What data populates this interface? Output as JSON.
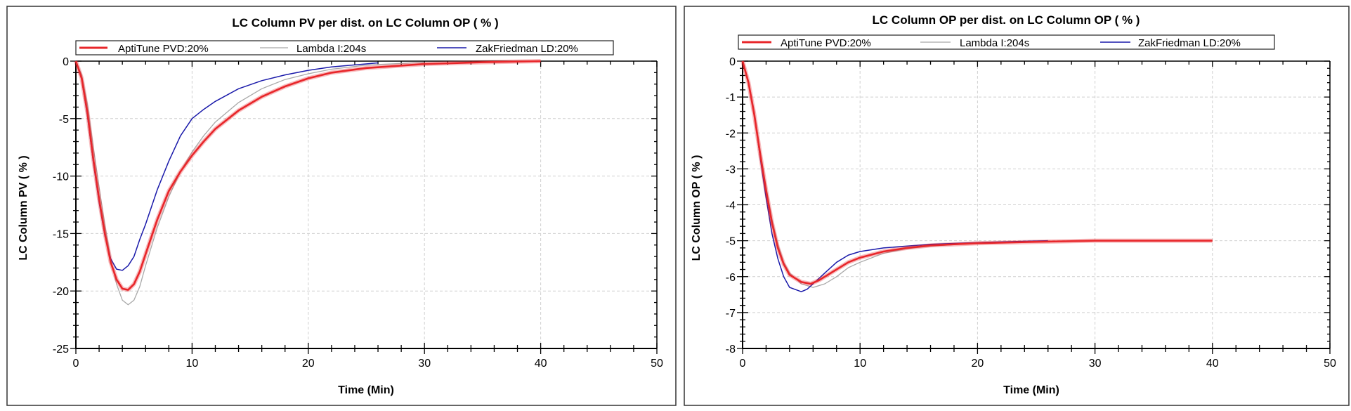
{
  "chart_data": [
    {
      "type": "line",
      "title": "LC Column PV per dist. on LC Column OP ( % )",
      "xlabel": "Time (Min)",
      "ylabel": "LC Column PV  ( % )",
      "xlim": [
        0,
        50
      ],
      "ylim": [
        -25,
        0
      ],
      "xticks": [
        "0",
        "10",
        "20",
        "30",
        "40",
        "50"
      ],
      "yticks": [
        "0",
        "-5",
        "-10",
        "-15",
        "-20",
        "-25"
      ],
      "grid": true,
      "legend_position": "top",
      "series": [
        {
          "name": "AptiTune  PVD:20%",
          "color": "#e8262a",
          "x": [
            0,
            0.5,
            1,
            1.5,
            2,
            2.5,
            3,
            3.5,
            4,
            4.5,
            5,
            5.5,
            6,
            6.5,
            7,
            8,
            9,
            10,
            11,
            12,
            14,
            16,
            18,
            20,
            22,
            25,
            30,
            35,
            40
          ],
          "y": [
            0,
            -1.5,
            -4.5,
            -8.5,
            -12,
            -15,
            -17.5,
            -19,
            -19.8,
            -19.9,
            -19.4,
            -18.3,
            -16.8,
            -15.3,
            -13.8,
            -11.3,
            -9.6,
            -8.2,
            -7.0,
            -5.9,
            -4.3,
            -3.1,
            -2.2,
            -1.5,
            -1.0,
            -0.6,
            -0.25,
            -0.1,
            0
          ]
        },
        {
          "name": "Lambda  I:204s",
          "color": "#a8a8a8",
          "x": [
            0,
            0.5,
            1,
            1.5,
            2,
            2.5,
            3,
            3.5,
            4,
            4.5,
            5,
            5.5,
            6,
            7,
            8,
            9,
            10,
            11,
            12,
            14,
            16,
            18,
            20,
            22,
            25,
            30
          ],
          "y": [
            0,
            -1.2,
            -3.8,
            -7.5,
            -11,
            -14.3,
            -17.2,
            -19.4,
            -20.8,
            -21.2,
            -20.8,
            -19.6,
            -17.8,
            -14.5,
            -11.8,
            -9.6,
            -7.9,
            -6.5,
            -5.3,
            -3.6,
            -2.4,
            -1.6,
            -1.1,
            -0.7,
            -0.35,
            -0.1
          ]
        },
        {
          "name": "ZakFriedman  LD:20%",
          "color": "#1a1aaa",
          "x": [
            0,
            0.5,
            1,
            1.5,
            2,
            2.5,
            3,
            3.5,
            4,
            4.5,
            5,
            5.5,
            6,
            7,
            8,
            9,
            10,
            11,
            12,
            14,
            16,
            18,
            20,
            22,
            26
          ],
          "y": [
            0,
            -1.6,
            -4.8,
            -8.8,
            -12.3,
            -15.2,
            -17.2,
            -18.1,
            -18.2,
            -17.8,
            -17.0,
            -15.5,
            -14.2,
            -11.2,
            -8.7,
            -6.5,
            -5.0,
            -4.2,
            -3.5,
            -2.4,
            -1.7,
            -1.2,
            -0.8,
            -0.5,
            -0.15
          ]
        }
      ]
    },
    {
      "type": "line",
      "title": "LC Column OP per dist. on LC Column OP ( % )",
      "xlabel": "Time (Min)",
      "ylabel": "LC Column OP  ( % )",
      "xlim": [
        0,
        50
      ],
      "ylim": [
        -8,
        0
      ],
      "xticks": [
        "0",
        "10",
        "20",
        "30",
        "40",
        "50"
      ],
      "yticks": [
        "0",
        "-1",
        "-2",
        "-3",
        "-4",
        "-5",
        "-6",
        "-7",
        "-8"
      ],
      "grid": true,
      "legend_position": "top",
      "series": [
        {
          "name": "AptiTune  PVD:20%",
          "color": "#e8262a",
          "x": [
            0,
            0.5,
            1,
            1.5,
            2,
            2.5,
            3,
            3.5,
            4,
            5,
            5.8,
            6.5,
            7,
            8,
            9,
            10,
            12,
            14,
            16,
            18,
            20,
            25,
            30,
            40
          ],
          "y": [
            0,
            -0.6,
            -1.5,
            -2.6,
            -3.6,
            -4.5,
            -5.2,
            -5.65,
            -5.95,
            -6.15,
            -6.2,
            -6.1,
            -6.0,
            -5.8,
            -5.6,
            -5.47,
            -5.3,
            -5.2,
            -5.13,
            -5.1,
            -5.07,
            -5.03,
            -5.0,
            -5.0
          ]
        },
        {
          "name": "Lambda  I:204s",
          "color": "#a8a8a8",
          "x": [
            0,
            0.5,
            1,
            1.5,
            2,
            2.5,
            3,
            3.5,
            4,
            5,
            6,
            7,
            8,
            9,
            10,
            12,
            14,
            16,
            20,
            25,
            30
          ],
          "y": [
            0,
            -0.55,
            -1.4,
            -2.5,
            -3.5,
            -4.4,
            -5.1,
            -5.6,
            -5.9,
            -6.2,
            -6.3,
            -6.2,
            -6.0,
            -5.75,
            -5.6,
            -5.35,
            -5.22,
            -5.15,
            -5.07,
            -5.03,
            -5.0
          ]
        },
        {
          "name": "ZakFriedman  LD:20%",
          "color": "#1a1aaa",
          "x": [
            0,
            0.5,
            1,
            1.5,
            2,
            2.5,
            3,
            3.5,
            4,
            5,
            5.5,
            6,
            7,
            8,
            9,
            10,
            12,
            14,
            16,
            20,
            26
          ],
          "y": [
            0,
            -0.6,
            -1.5,
            -2.7,
            -3.8,
            -4.8,
            -5.5,
            -6.0,
            -6.3,
            -6.42,
            -6.35,
            -6.2,
            -5.9,
            -5.6,
            -5.4,
            -5.3,
            -5.2,
            -5.15,
            -5.1,
            -5.05,
            -5.0
          ]
        }
      ]
    }
  ]
}
